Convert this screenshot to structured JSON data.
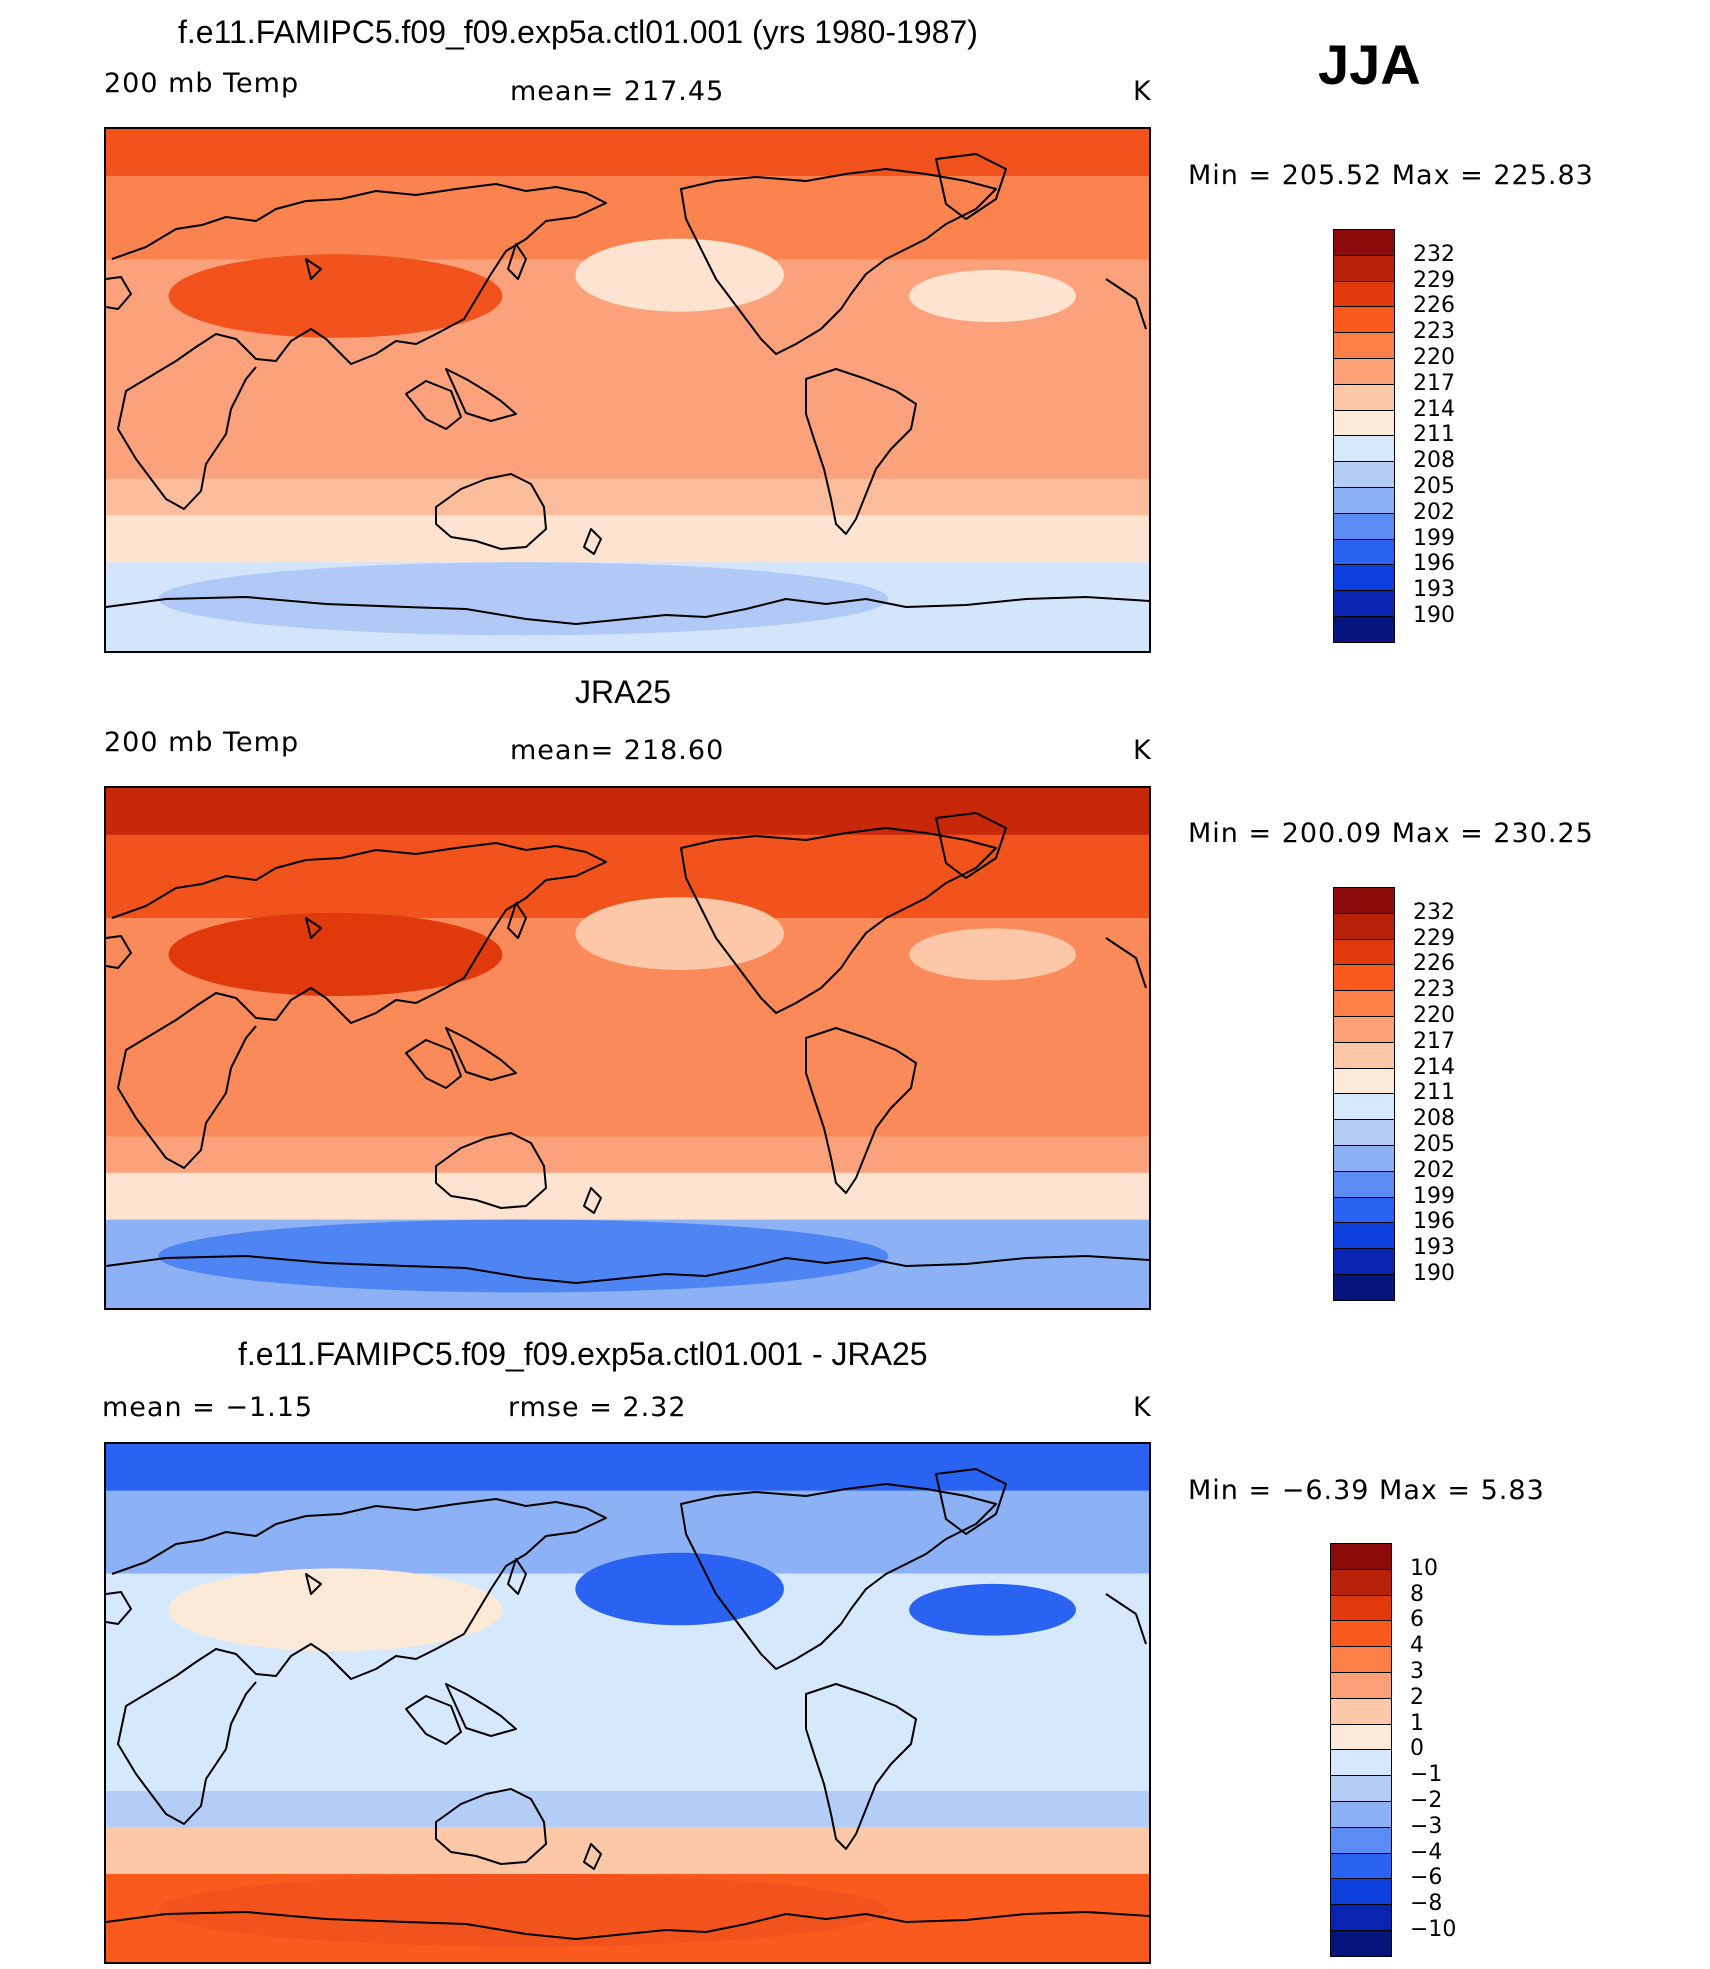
{
  "season": "JJA",
  "panels": [
    {
      "title": "f.e11.FAMIPC5.f09_f09.exp5a.ctl01.001 (yrs 1980-1987)",
      "left_label": "200 mb Temp",
      "center_label": "mean=  217.45",
      "units": "K",
      "minmax": "Min  =  205.52  Max  =  225.83",
      "colorbar": {
        "labels": [
          "232",
          "229",
          "226",
          "223",
          "220",
          "217",
          "214",
          "211",
          "208",
          "205",
          "202",
          "199",
          "196",
          "193",
          "190"
        ],
        "colors": [
          "#8b0a0a",
          "#b8210a",
          "#e03a0c",
          "#fb5a1e",
          "#fc7f48",
          "#fca07a",
          "#fdc8a8",
          "#fde9d8",
          "#d6e8fb",
          "#b3cdf6",
          "#8db1f5",
          "#5a8cf4",
          "#2a63f2",
          "#0c3fdc",
          "#0a24b2",
          "#06157d"
        ]
      },
      "fields": {
        "polar_n": "#f2531c",
        "mid_n": "#fa8350",
        "tropics": "#fba27c",
        "sh_mid": "#fbbd9b",
        "sh_high": "#fde3d0",
        "antarctic": "#d3e5fb",
        "antarctic_core": "#b0c9f6",
        "warm_core": "#f2531c",
        "cool_spot": "#fde3d0"
      }
    },
    {
      "title": "JRA25",
      "left_label": "200 mb Temp",
      "center_label": "mean=  218.60",
      "units": "K",
      "minmax": "Min  =  200.09  Max  =  230.25",
      "colorbar": {
        "labels": [
          "232",
          "229",
          "226",
          "223",
          "220",
          "217",
          "214",
          "211",
          "208",
          "205",
          "202",
          "199",
          "196",
          "193",
          "190"
        ],
        "colors": [
          "#8b0a0a",
          "#b8210a",
          "#e03a0c",
          "#fb5a1e",
          "#fc7f48",
          "#fca07a",
          "#fdc8a8",
          "#fde9d8",
          "#d6e8fb",
          "#b3cdf6",
          "#8db1f5",
          "#5a8cf4",
          "#2a63f2",
          "#0c3fdc",
          "#0a24b2",
          "#06157d"
        ]
      },
      "fields": {
        "polar_n": "#c8280a",
        "mid_n": "#f2531c",
        "tropics": "#fa8a5a",
        "sh_mid": "#fba27c",
        "sh_high": "#fde3d0",
        "antarctic": "#8db1f5",
        "antarctic_core": "#4f84f3",
        "warm_core": "#e03a0c",
        "cool_spot": "#fdc8a8"
      }
    },
    {
      "title": "f.e11.FAMIPC5.f09_f09.exp5a.ctl01.001 - JRA25",
      "left_label": "mean =     −1.15",
      "center_label": "rmse =      2.32",
      "units": "K",
      "minmax": "Min  =    −6.39  Max  =      5.83",
      "colorbar": {
        "labels": [
          "10",
          "8",
          "6",
          "4",
          "3",
          "2",
          "1",
          "0",
          "−1",
          "−2",
          "−3",
          "−4",
          "−6",
          "−8",
          "−10"
        ],
        "colors": [
          "#8b0a0a",
          "#b8210a",
          "#e03a0c",
          "#fb5a1e",
          "#fc7f48",
          "#fca07a",
          "#fdc8a8",
          "#fde9d8",
          "#d6e8fb",
          "#b3cdf6",
          "#8db1f5",
          "#5a8cf4",
          "#2a63f2",
          "#0c3fdc",
          "#0a24b2",
          "#06157d"
        ]
      },
      "fields": {
        "polar_n": "#2a63f2",
        "mid_n": "#8db1f5",
        "tropics": "#d6e8fb",
        "sh_mid": "#b3cdf6",
        "sh_high": "#fdc8a8",
        "antarctic": "#fb5a1e",
        "antarctic_core": "#f2531c",
        "warm_core": "#fde9d8",
        "cool_spot": "#2a63f2"
      }
    }
  ]
}
